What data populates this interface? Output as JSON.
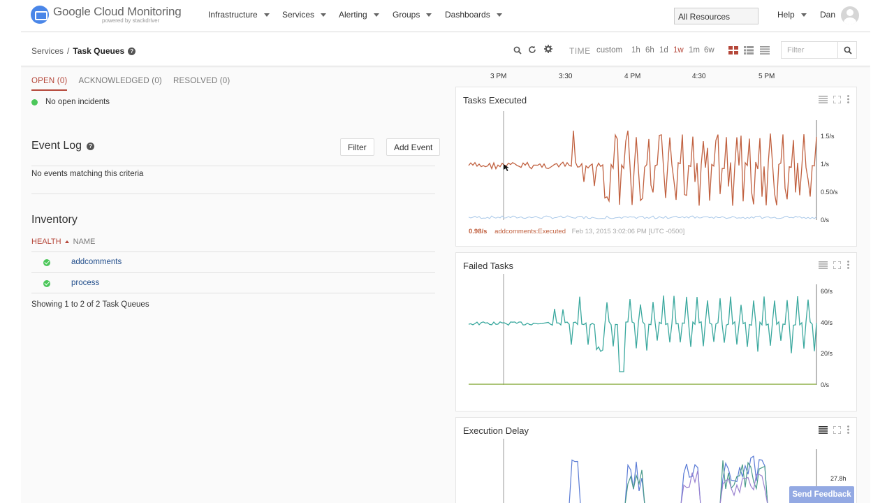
{
  "brand": {
    "name": "Google Cloud Monitoring",
    "powered_by": "powered by stackdriver"
  },
  "nav": {
    "items": [
      {
        "label": "Infrastructure"
      },
      {
        "label": "Services"
      },
      {
        "label": "Alerting"
      },
      {
        "label": "Groups"
      },
      {
        "label": "Dashboards"
      }
    ],
    "resources": "All Resources",
    "help": "Help",
    "user": "Dan"
  },
  "breadcrumb": {
    "parent": "Services",
    "separator": "/",
    "current": "Task Queues"
  },
  "toolbar": {
    "time_label": "TIME",
    "ranges": [
      "custom",
      "1h",
      "6h",
      "1d",
      "1w",
      "1m",
      "6w"
    ],
    "active_range": "1w",
    "filter_placeholder": "Filter"
  },
  "incidents": {
    "tabs": [
      "OPEN (0)",
      "ACKNOWLEDGED (0)",
      "RESOLVED (0)"
    ],
    "active_tab": "OPEN (0)",
    "empty_message": "No open incidents"
  },
  "event_log": {
    "title": "Event Log",
    "filter_button": "Filter",
    "add_button": "Add Event",
    "empty_message": "No events matching this criteria"
  },
  "inventory": {
    "title": "Inventory",
    "col_health": "HEALTH",
    "col_name": "NAME",
    "rows": [
      {
        "name": "addcomments",
        "health": "ok"
      },
      {
        "name": "process",
        "health": "ok"
      }
    ],
    "summary": "Showing 1 to 2 of 2 Task Queues"
  },
  "time_axis": [
    "3 PM",
    "3:30",
    "4 PM",
    "4:30",
    "5 PM"
  ],
  "charts": {
    "tasks_executed": {
      "title": "Tasks Executed",
      "y_labels": [
        "1.5/s",
        "1/s",
        "0.50/s",
        "0/s"
      ],
      "legend_value": "0.98/s",
      "legend_series": "addcomments:Executed",
      "legend_time": "Feb 13, 2015 3:02:06 PM [UTC -0500]"
    },
    "failed_tasks": {
      "title": "Failed Tasks",
      "y_labels": [
        "60/s",
        "40/s",
        "20/s",
        "0/s"
      ]
    },
    "execution_delay": {
      "title": "Execution Delay",
      "y_labels": [
        "27.8h"
      ]
    }
  },
  "colors": {
    "accent": "#b5473a",
    "series_executed": "#c0603f",
    "series_failed": "#3aa89e",
    "series_baseline": "#8fb04a",
    "series_delay_a": "#5a7bd5",
    "series_delay_b": "#4a9a8a",
    "series_delay_c": "#9a82d0"
  },
  "feedback_button": "Send Feedback"
}
